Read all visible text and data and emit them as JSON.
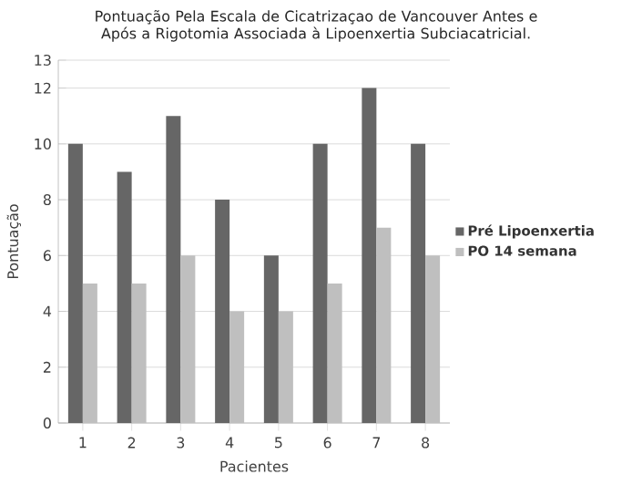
{
  "chart_data": {
    "type": "bar",
    "title": "Pontuação Pela Escala de Cicatrizaçao de Vancouver Antes e Após a Rigotomia Associada à Lipoenxertia Subciacatricial.",
    "xlabel": "Pacientes",
    "ylabel": "Pontuação",
    "categories": [
      "1",
      "2",
      "3",
      "4",
      "5",
      "6",
      "7",
      "8"
    ],
    "series": [
      {
        "name": "Pré Lipoenxertia",
        "color": "#666666",
        "values": [
          10,
          9,
          11,
          8,
          6,
          10,
          12,
          10
        ]
      },
      {
        "name": "PO 14 semana",
        "color": "#bfbfbf",
        "values": [
          5,
          5,
          6,
          4,
          4,
          5,
          7,
          6
        ]
      }
    ],
    "ylim": [
      0,
      13
    ],
    "yticks": [
      0,
      2,
      4,
      6,
      8,
      10,
      12,
      13
    ],
    "grid": "y",
    "legend": "right"
  }
}
